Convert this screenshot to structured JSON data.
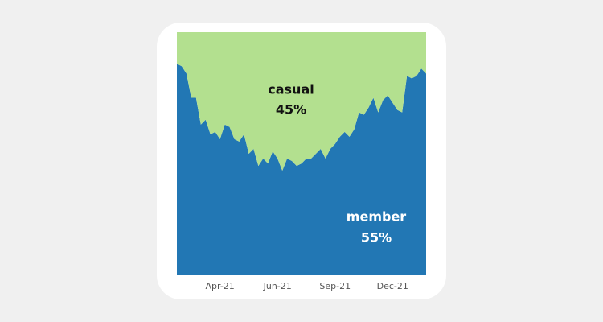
{
  "chart_data": {
    "type": "stacked_area",
    "categories": [
      null,
      null,
      null,
      null,
      null,
      null,
      null,
      null,
      null,
      "Apr-21",
      null,
      null,
      null,
      null,
      null,
      null,
      null,
      null,
      null,
      null,
      null,
      "Jun-21",
      null,
      null,
      null,
      null,
      null,
      null,
      null,
      null,
      null,
      null,
      null,
      "Sep-21",
      null,
      null,
      null,
      null,
      null,
      null,
      null,
      null,
      null,
      null,
      null,
      "Dec-21",
      null,
      null,
      null,
      null,
      null,
      null,
      null
    ],
    "ylim": [
      0,
      100
    ],
    "series": [
      {
        "name": "member",
        "color": "#2277b4",
        "share": {
          "value": 55,
          "label": "55%"
        },
        "values": [
          87,
          86,
          83,
          73,
          73,
          62,
          64,
          58,
          59,
          56,
          62,
          61,
          56,
          55,
          58,
          50,
          52,
          45,
          48,
          46,
          51,
          48,
          43,
          48,
          47,
          45,
          46,
          48,
          48,
          50,
          52,
          48,
          52,
          54,
          57,
          59,
          57,
          60,
          67,
          66,
          69,
          73,
          67,
          72,
          74,
          71,
          68,
          67,
          82,
          81,
          82,
          85,
          83
        ]
      },
      {
        "name": "casual",
        "color": "#b3e08f",
        "share": {
          "value": 45,
          "label": "45%"
        },
        "values": [
          13,
          14,
          17,
          27,
          27,
          38,
          36,
          42,
          41,
          44,
          38,
          39,
          44,
          45,
          42,
          50,
          48,
          55,
          52,
          54,
          49,
          52,
          57,
          52,
          53,
          55,
          54,
          52,
          52,
          50,
          48,
          52,
          48,
          46,
          43,
          41,
          43,
          40,
          33,
          34,
          31,
          27,
          33,
          28,
          26,
          29,
          32,
          33,
          18,
          19,
          18,
          15,
          17
        ]
      }
    ]
  }
}
